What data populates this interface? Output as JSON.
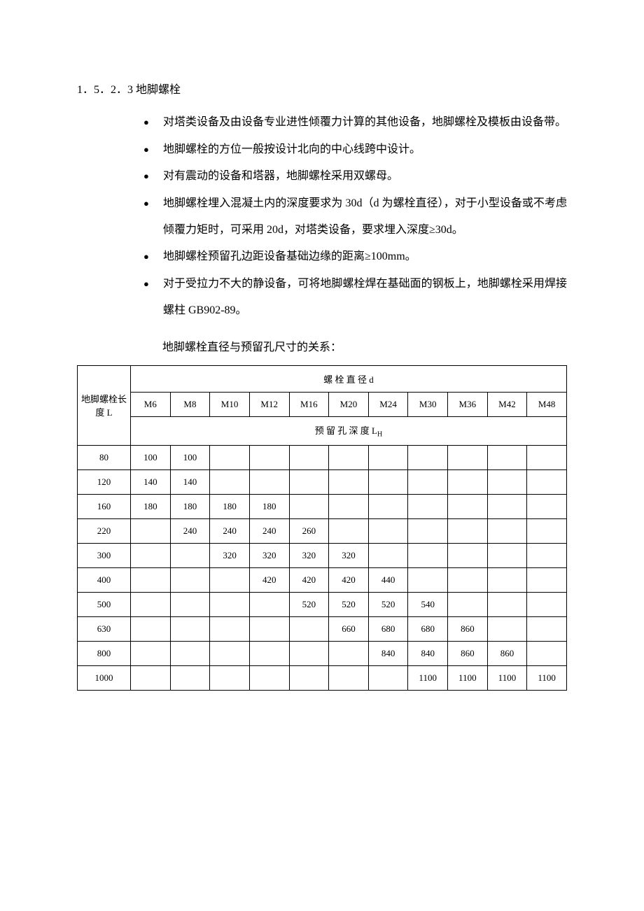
{
  "section": {
    "number": "1．5．2．3",
    "title": "地脚螺栓"
  },
  "bullets": [
    "对塔类设备及由设备专业进性倾覆力计算的其他设备，地脚螺栓及模板由设备带。",
    "地脚螺栓的方位一般按设计北向的中心线跨中设计。",
    "对有震动的设备和塔器，地脚螺栓采用双螺母。",
    "地脚螺栓埋入混凝土内的深度要求为 30d（d 为螺栓直径），对于小型设备或不考虑倾覆力矩时，可采用 20d，对塔类设备，要求埋入深度≥30d。",
    "地脚螺栓预留孔边距设备基础边缘的距离≥100mm。",
    "对于受拉力不大的静设备，可将地脚螺栓焊在基础面的钢板上，地脚螺栓采用焊接螺柱 GB902-89。"
  ],
  "table_intro": "地脚螺栓直径与预留孔尺寸的关系：",
  "table": {
    "row_header_label": "地脚螺栓长度 L",
    "header_row1": "螺 栓 直 径 d",
    "header_row3_prefix": "预 留 孔 深 度 L",
    "header_row3_sub": "H",
    "diameters": [
      "M6",
      "M8",
      "M10",
      "M12",
      "M16",
      "M20",
      "M24",
      "M30",
      "M36",
      "M42",
      "M48"
    ],
    "rows": [
      {
        "L": "80",
        "cells": [
          "100",
          "100",
          "",
          "",
          "",
          "",
          "",
          "",
          "",
          "",
          ""
        ]
      },
      {
        "L": "120",
        "cells": [
          "140",
          "140",
          "",
          "",
          "",
          "",
          "",
          "",
          "",
          "",
          ""
        ]
      },
      {
        "L": "160",
        "cells": [
          "180",
          "180",
          "180",
          "180",
          "",
          "",
          "",
          "",
          "",
          "",
          ""
        ]
      },
      {
        "L": "220",
        "cells": [
          "",
          "240",
          "240",
          "240",
          "260",
          "",
          "",
          "",
          "",
          "",
          ""
        ]
      },
      {
        "L": "300",
        "cells": [
          "",
          "",
          "320",
          "320",
          "320",
          "320",
          "",
          "",
          "",
          "",
          ""
        ]
      },
      {
        "L": "400",
        "cells": [
          "",
          "",
          "",
          "420",
          "420",
          "420",
          "440",
          "",
          "",
          "",
          ""
        ]
      },
      {
        "L": "500",
        "cells": [
          "",
          "",
          "",
          "",
          "520",
          "520",
          "520",
          "540",
          "",
          "",
          ""
        ]
      },
      {
        "L": "630",
        "cells": [
          "",
          "",
          "",
          "",
          "",
          "660",
          "680",
          "680",
          "860",
          "",
          ""
        ]
      },
      {
        "L": "800",
        "cells": [
          "",
          "",
          "",
          "",
          "",
          "",
          "840",
          "840",
          "860",
          "860",
          ""
        ]
      },
      {
        "L": "1000",
        "cells": [
          "",
          "",
          "",
          "",
          "",
          "",
          "",
          "1100",
          "1100",
          "1100",
          "1100"
        ]
      }
    ]
  }
}
